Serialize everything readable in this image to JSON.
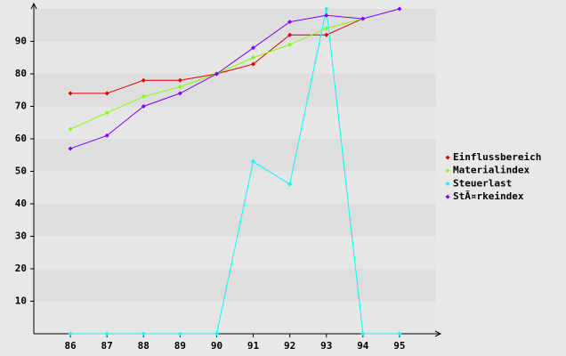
{
  "chart_data": {
    "type": "line",
    "categories": [
      "86",
      "87",
      "88",
      "89",
      "90",
      "91",
      "92",
      "93",
      "94",
      "95"
    ],
    "series": [
      {
        "name": "Einflussbereich",
        "color": "#dd0000",
        "values": [
          74,
          74,
          78,
          78,
          80,
          83,
          92,
          92,
          97,
          null
        ]
      },
      {
        "name": "Materialindex",
        "color": "#80ff00",
        "values": [
          63,
          68,
          73,
          76,
          80,
          85,
          89,
          94,
          97,
          null
        ]
      },
      {
        "name": "Steuerlast",
        "color": "#00ffff",
        "values": [
          0,
          0,
          0,
          0,
          0,
          53,
          46,
          100,
          0,
          0
        ]
      },
      {
        "name": "StÃ¤rkeindex",
        "color": "#8000ff",
        "values": [
          57,
          61,
          70,
          74,
          80,
          88,
          96,
          98,
          97,
          100
        ]
      }
    ],
    "ylim": [
      0,
      100
    ],
    "yticks": [
      10,
      20,
      30,
      40,
      50,
      60,
      70,
      80,
      90
    ],
    "grid": true
  }
}
